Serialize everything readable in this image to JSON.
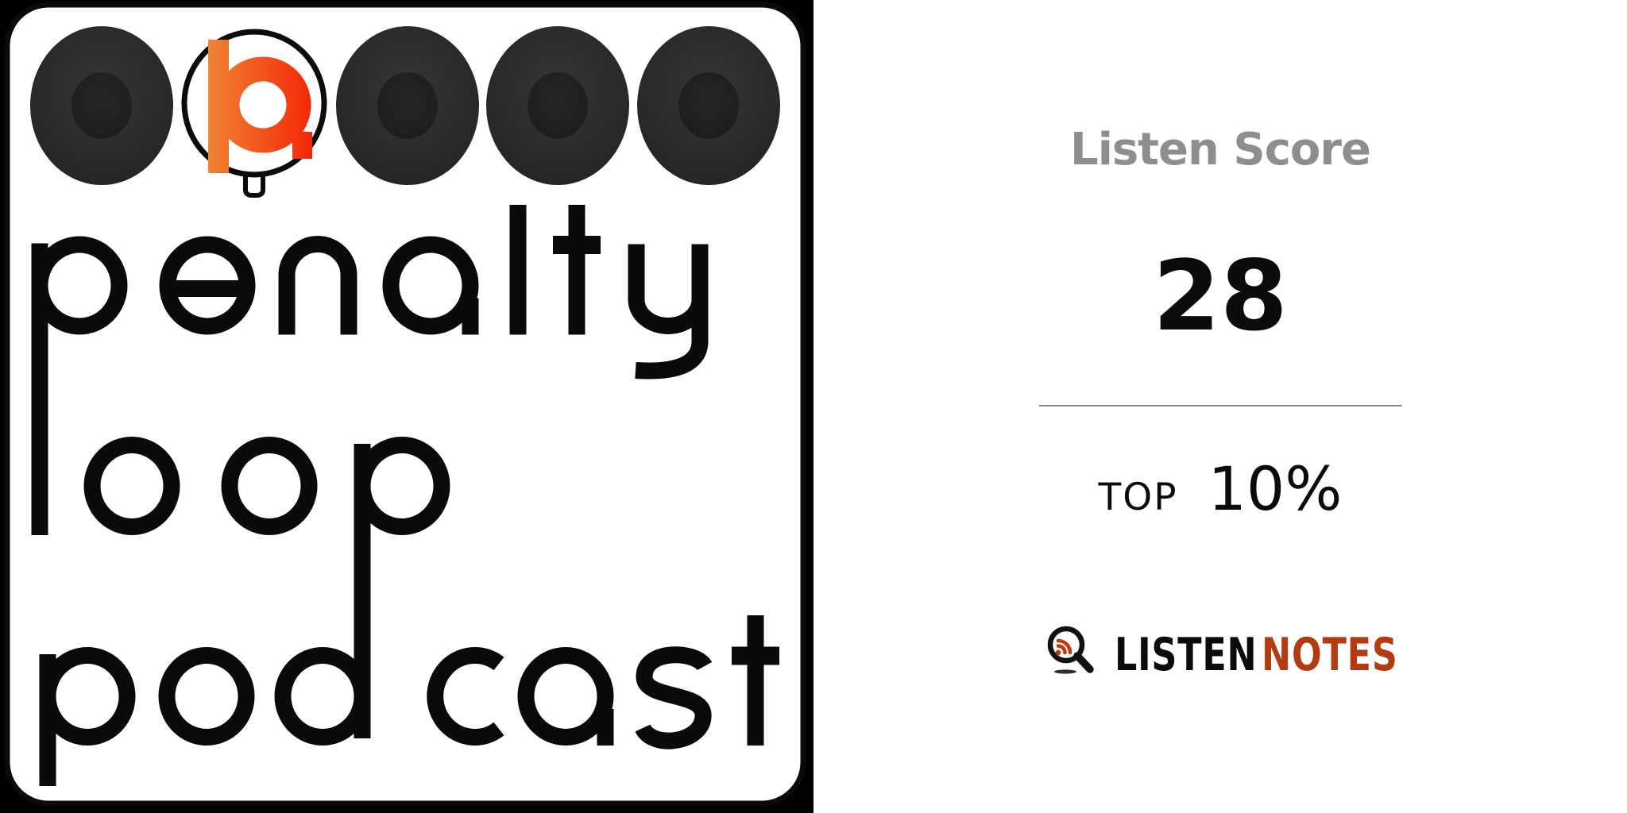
{
  "cover": {
    "alt": "penalty loop podcast cover art",
    "words": [
      "penalty",
      "loop",
      "podcast"
    ],
    "brand_glyph": "b",
    "colors": {
      "background": "#000000",
      "card": "#ffffff",
      "ink": "#0a0a0a",
      "target_dark": "#2e2e2e",
      "target_inner": "#1d1d1d",
      "glyph_gradient_start": "#F08433",
      "glyph_gradient_end": "#F42708"
    }
  },
  "score_panel": {
    "label": "Listen Score",
    "value": "28",
    "rank_prefix": "TOP",
    "rank_value": "10%",
    "brand": {
      "word1": "LISTEN",
      "word2": "NOTES"
    },
    "colors": {
      "label_gray": "#8e8e8e",
      "text": "#0b0b0b",
      "divider": "#8a8a8a",
      "accent": "#B23B12",
      "rss_orange": "#C23A0C"
    }
  }
}
